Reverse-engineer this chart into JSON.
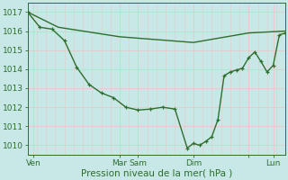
{
  "title": "Pression niveau de la mer( hPa )",
  "bg_color": "#c8e8e8",
  "grid_color": "#e8c8c8",
  "line_color": "#2d6e2d",
  "ylim": [
    1009.5,
    1017.5
  ],
  "yticks": [
    1010,
    1011,
    1012,
    1013,
    1014,
    1015,
    1016,
    1017
  ],
  "xlim": [
    0,
    168
  ],
  "xtick_positions": [
    4,
    60,
    72,
    108,
    144,
    160
  ],
  "xtick_labels": [
    "Ven",
    "Mar",
    "Sam",
    "Dim",
    "",
    "Lun"
  ],
  "series1_x": [
    0,
    20,
    60,
    108,
    144,
    168
  ],
  "series1_y": [
    1017.0,
    1016.2,
    1015.7,
    1015.4,
    1015.9,
    1016.0
  ],
  "series2_x": [
    0,
    8,
    16,
    24,
    32,
    40,
    48,
    56,
    64,
    72,
    80,
    88,
    96,
    104,
    108,
    112,
    116,
    120,
    124,
    128,
    132,
    136,
    140,
    144,
    148,
    152,
    156,
    160,
    164,
    168
  ],
  "series2_y": [
    1017.0,
    1016.2,
    1016.1,
    1015.5,
    1014.1,
    1013.2,
    1012.75,
    1012.5,
    1012.0,
    1011.85,
    1011.9,
    1012.0,
    1011.9,
    1009.85,
    1010.1,
    1010.0,
    1010.2,
    1010.45,
    1011.35,
    1013.65,
    1013.85,
    1013.95,
    1014.05,
    1014.6,
    1014.9,
    1014.4,
    1013.85,
    1014.2,
    1015.8,
    1015.9
  ],
  "figsize": [
    3.2,
    2.0
  ],
  "dpi": 100
}
